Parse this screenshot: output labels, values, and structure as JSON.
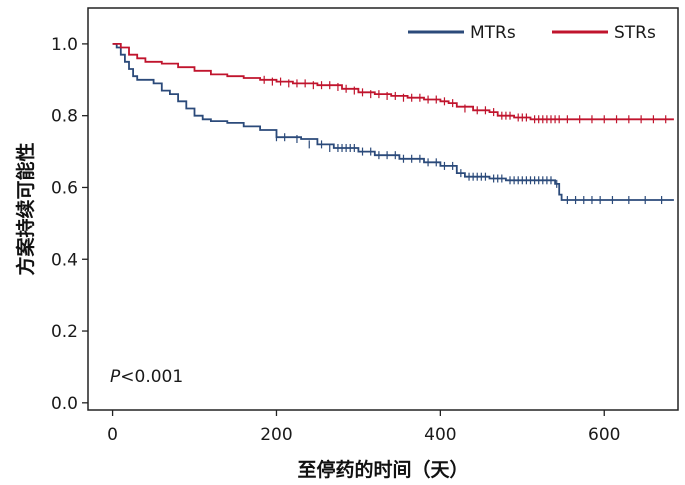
{
  "chart_data": {
    "type": "line",
    "subtype": "kaplan-meier",
    "title": "",
    "xlabel": "至停药的时间（天）",
    "ylabel": "方案持续可能性",
    "xlim": [
      -30,
      690
    ],
    "ylim": [
      -0.02,
      1.1
    ],
    "xticks": [
      0,
      200,
      400,
      600
    ],
    "yticks": [
      0.0,
      0.2,
      0.4,
      0.6,
      0.8,
      1.0
    ],
    "ytick_labels": [
      "0.0",
      "0.2",
      "0.4",
      "0.6",
      "0.8",
      "1.0"
    ],
    "grid": false,
    "legend_position": "top-right",
    "annotation": {
      "italic": "P",
      "text": "<0.001"
    },
    "series": [
      {
        "name": "MTRs",
        "color": "#2b4a7a",
        "steps": [
          [
            0,
            1.0
          ],
          [
            5,
            0.99
          ],
          [
            10,
            0.97
          ],
          [
            15,
            0.95
          ],
          [
            20,
            0.93
          ],
          [
            25,
            0.91
          ],
          [
            30,
            0.9
          ],
          [
            50,
            0.89
          ],
          [
            60,
            0.87
          ],
          [
            70,
            0.86
          ],
          [
            80,
            0.84
          ],
          [
            90,
            0.82
          ],
          [
            100,
            0.8
          ],
          [
            110,
            0.79
          ],
          [
            120,
            0.785
          ],
          [
            140,
            0.78
          ],
          [
            160,
            0.77
          ],
          [
            180,
            0.76
          ],
          [
            200,
            0.74
          ],
          [
            230,
            0.735
          ],
          [
            250,
            0.72
          ],
          [
            270,
            0.71
          ],
          [
            300,
            0.7
          ],
          [
            320,
            0.69
          ],
          [
            350,
            0.68
          ],
          [
            380,
            0.67
          ],
          [
            400,
            0.66
          ],
          [
            420,
            0.64
          ],
          [
            430,
            0.63
          ],
          [
            460,
            0.625
          ],
          [
            480,
            0.62
          ],
          [
            540,
            0.61
          ],
          [
            545,
            0.58
          ],
          [
            548,
            0.565
          ],
          [
            685,
            0.565
          ]
        ],
        "censors": [
          [
            200,
            0.74
          ],
          [
            210,
            0.74
          ],
          [
            225,
            0.735
          ],
          [
            240,
            0.72
          ],
          [
            255,
            0.72
          ],
          [
            265,
            0.71
          ],
          [
            275,
            0.71
          ],
          [
            280,
            0.71
          ],
          [
            285,
            0.71
          ],
          [
            290,
            0.71
          ],
          [
            295,
            0.71
          ],
          [
            305,
            0.7
          ],
          [
            315,
            0.7
          ],
          [
            325,
            0.69
          ],
          [
            335,
            0.69
          ],
          [
            345,
            0.69
          ],
          [
            355,
            0.68
          ],
          [
            365,
            0.68
          ],
          [
            375,
            0.68
          ],
          [
            385,
            0.67
          ],
          [
            395,
            0.67
          ],
          [
            405,
            0.66
          ],
          [
            415,
            0.66
          ],
          [
            425,
            0.64
          ],
          [
            435,
            0.63
          ],
          [
            440,
            0.63
          ],
          [
            445,
            0.63
          ],
          [
            450,
            0.63
          ],
          [
            455,
            0.63
          ],
          [
            465,
            0.625
          ],
          [
            470,
            0.625
          ],
          [
            475,
            0.625
          ],
          [
            485,
            0.62
          ],
          [
            490,
            0.62
          ],
          [
            495,
            0.62
          ],
          [
            500,
            0.62
          ],
          [
            505,
            0.62
          ],
          [
            510,
            0.62
          ],
          [
            515,
            0.62
          ],
          [
            520,
            0.62
          ],
          [
            525,
            0.62
          ],
          [
            530,
            0.62
          ],
          [
            535,
            0.62
          ],
          [
            542,
            0.61
          ],
          [
            555,
            0.565
          ],
          [
            565,
            0.565
          ],
          [
            575,
            0.565
          ],
          [
            585,
            0.565
          ],
          [
            595,
            0.565
          ],
          [
            610,
            0.565
          ],
          [
            630,
            0.565
          ],
          [
            650,
            0.565
          ],
          [
            670,
            0.565
          ]
        ]
      },
      {
        "name": "STRs",
        "color": "#c0142d",
        "steps": [
          [
            0,
            1.0
          ],
          [
            10,
            0.99
          ],
          [
            20,
            0.97
          ],
          [
            30,
            0.96
          ],
          [
            40,
            0.95
          ],
          [
            60,
            0.945
          ],
          [
            80,
            0.935
          ],
          [
            100,
            0.925
          ],
          [
            120,
            0.915
          ],
          [
            140,
            0.91
          ],
          [
            160,
            0.905
          ],
          [
            180,
            0.9
          ],
          [
            200,
            0.895
          ],
          [
            220,
            0.89
          ],
          [
            250,
            0.885
          ],
          [
            280,
            0.875
          ],
          [
            300,
            0.865
          ],
          [
            320,
            0.86
          ],
          [
            340,
            0.855
          ],
          [
            360,
            0.85
          ],
          [
            380,
            0.845
          ],
          [
            400,
            0.84
          ],
          [
            410,
            0.835
          ],
          [
            420,
            0.825
          ],
          [
            440,
            0.815
          ],
          [
            460,
            0.81
          ],
          [
            470,
            0.8
          ],
          [
            490,
            0.795
          ],
          [
            510,
            0.79
          ],
          [
            685,
            0.79
          ]
        ],
        "censors": [
          [
            185,
            0.9
          ],
          [
            195,
            0.895
          ],
          [
            205,
            0.895
          ],
          [
            215,
            0.89
          ],
          [
            225,
            0.89
          ],
          [
            235,
            0.89
          ],
          [
            245,
            0.885
          ],
          [
            255,
            0.885
          ],
          [
            265,
            0.885
          ],
          [
            275,
            0.88
          ],
          [
            285,
            0.875
          ],
          [
            295,
            0.87
          ],
          [
            305,
            0.865
          ],
          [
            315,
            0.86
          ],
          [
            325,
            0.86
          ],
          [
            335,
            0.855
          ],
          [
            345,
            0.855
          ],
          [
            355,
            0.85
          ],
          [
            365,
            0.85
          ],
          [
            375,
            0.85
          ],
          [
            385,
            0.845
          ],
          [
            395,
            0.845
          ],
          [
            405,
            0.84
          ],
          [
            415,
            0.835
          ],
          [
            430,
            0.82
          ],
          [
            445,
            0.815
          ],
          [
            455,
            0.815
          ],
          [
            465,
            0.81
          ],
          [
            475,
            0.8
          ],
          [
            480,
            0.8
          ],
          [
            485,
            0.8
          ],
          [
            495,
            0.795
          ],
          [
            500,
            0.795
          ],
          [
            505,
            0.795
          ],
          [
            515,
            0.79
          ],
          [
            520,
            0.79
          ],
          [
            525,
            0.79
          ],
          [
            530,
            0.79
          ],
          [
            535,
            0.79
          ],
          [
            540,
            0.79
          ],
          [
            545,
            0.79
          ],
          [
            555,
            0.79
          ],
          [
            570,
            0.79
          ],
          [
            585,
            0.79
          ],
          [
            600,
            0.79
          ],
          [
            615,
            0.79
          ],
          [
            630,
            0.79
          ],
          [
            645,
            0.79
          ],
          [
            660,
            0.79
          ],
          [
            675,
            0.79
          ]
        ]
      }
    ]
  }
}
